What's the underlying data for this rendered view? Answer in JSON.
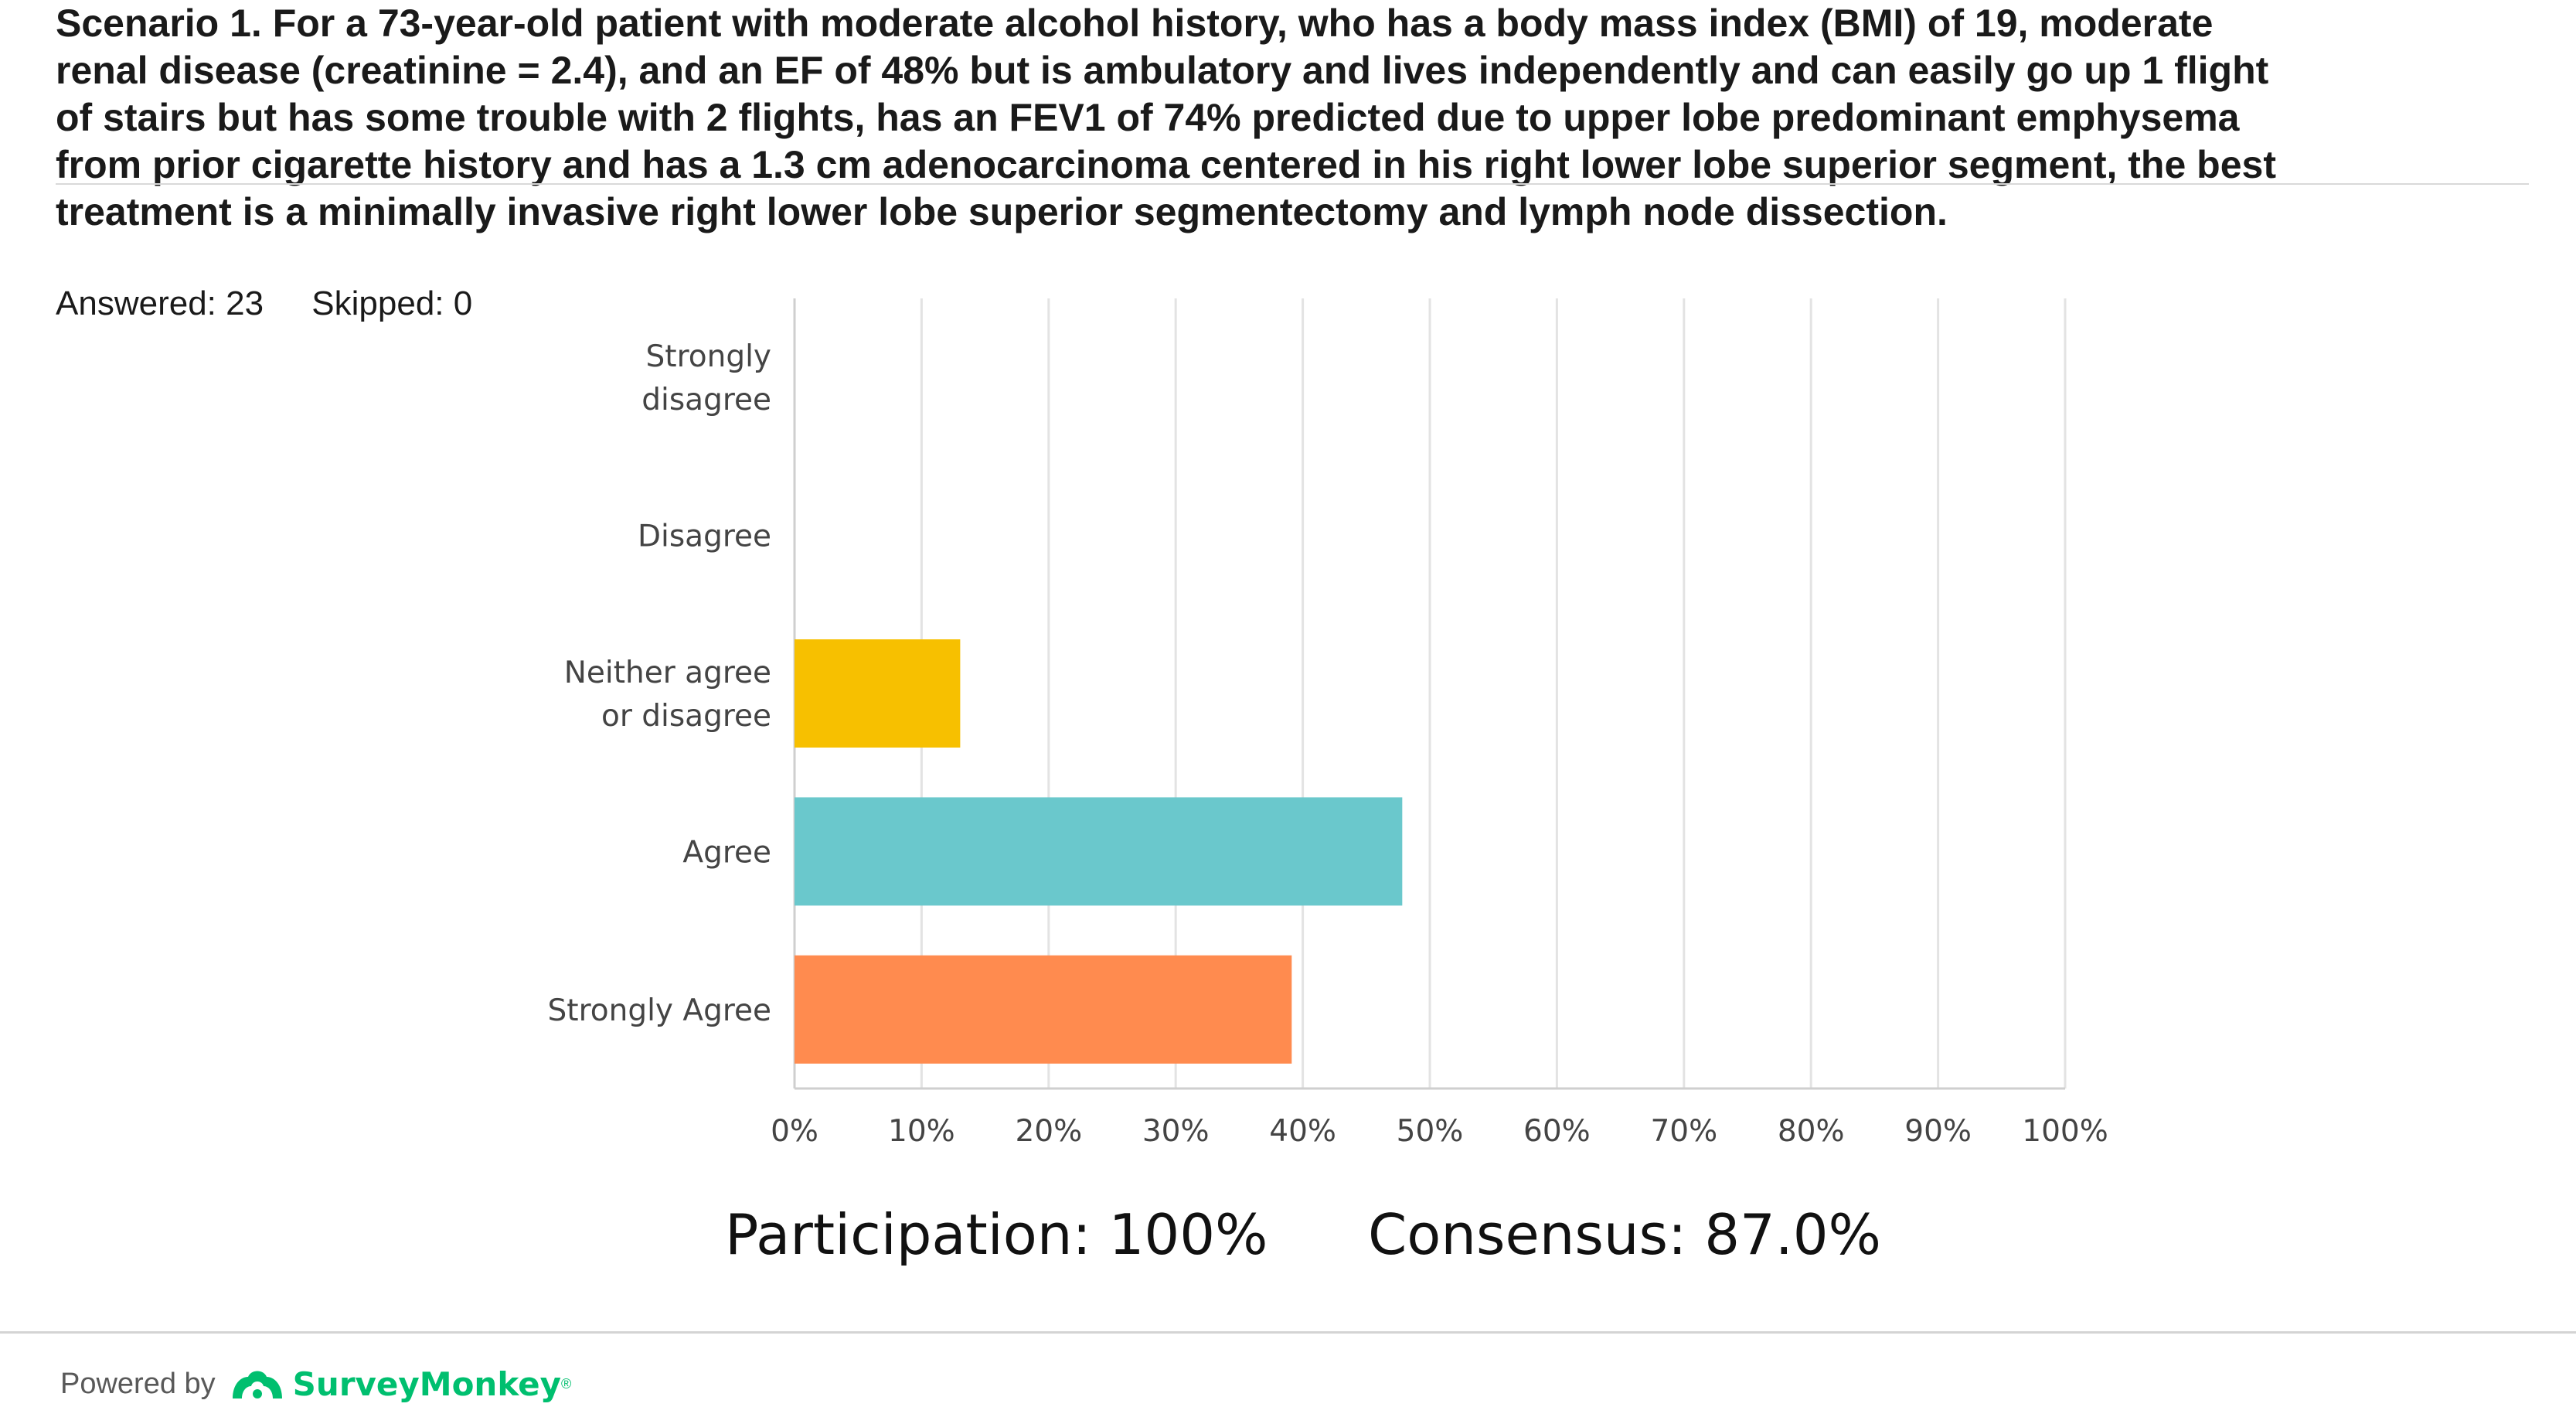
{
  "question": {
    "lines": [
      "Scenario 1. For a 73-year-old patient with moderate alcohol history, who has a body mass index (BMI) of 19, moderate",
      "renal disease (creatinine = 2.4), and an EF of 48% but is ambulatory and lives independently and can easily go up 1 flight",
      "of stairs but has some trouble with 2 flights, has an FEV1 of 74% predicted due to upper lobe predominant emphysema",
      "from prior cigarette history and has a 1.3 cm adenocarcinoma centered in his right lower lobe superior segment, the best",
      "treatment is a minimally invasive right lower lobe superior segmentectomy and lymph node dissection."
    ]
  },
  "stats": {
    "answered": "Answered: 23",
    "skipped": "Skipped: 0"
  },
  "chart_data": {
    "type": "bar",
    "orientation": "horizontal",
    "categories": [
      "Strongly disagree",
      "Disagree",
      "Neither agree or disagree",
      "Agree",
      "Strongly Agree"
    ],
    "category_label_lines": [
      [
        "Strongly",
        "disagree"
      ],
      [
        "Disagree"
      ],
      [
        "Neither agree",
        "or disagree"
      ],
      [
        "Agree"
      ],
      [
        "Strongly Agree"
      ]
    ],
    "values": [
      0,
      0,
      13.04,
      47.83,
      39.13
    ],
    "colors": [
      "#f7c000",
      "#f7c000",
      "#f7c000",
      "#6ac8cc",
      "#ff8b4f"
    ],
    "x_ticks": [
      "0%",
      "10%",
      "20%",
      "30%",
      "40%",
      "50%",
      "60%",
      "70%",
      "80%",
      "90%",
      "100%"
    ],
    "xlim": [
      0,
      100
    ],
    "grid": true,
    "title": "",
    "xlabel": "",
    "ylabel": ""
  },
  "summary": {
    "participation": "Participation: 100%",
    "consensus": "Consensus: 87.0%"
  },
  "footer": {
    "powered_by": "Powered by",
    "brand": "SurveyMonkey",
    "brand_color": "#00bf6f"
  }
}
